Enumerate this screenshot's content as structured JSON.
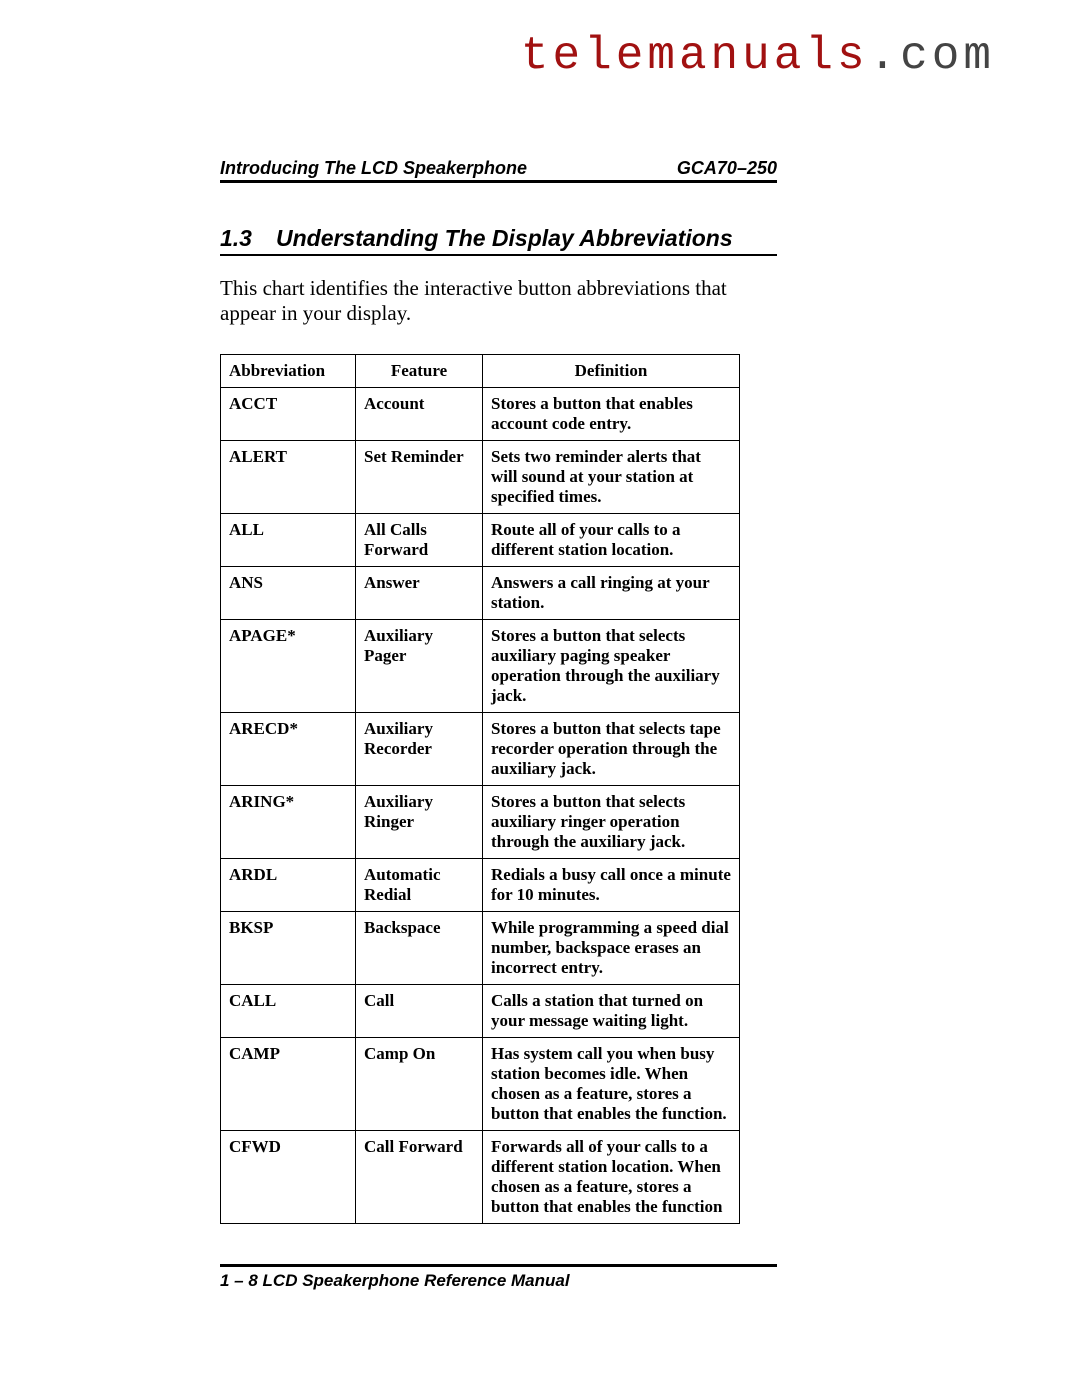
{
  "watermark": {
    "part1": "telemanuals",
    "part2": ".com"
  },
  "header": {
    "left": "Introducing The LCD Speakerphone",
    "right": "GCA70–250"
  },
  "section": {
    "number": "1.3",
    "title": "Understanding The Display Abbreviations"
  },
  "intro": "This chart identifies the interactive button abbreviations that appear in your display.",
  "table": {
    "columns": [
      "Abbreviation",
      "Feature",
      "Definition"
    ],
    "rows": [
      [
        "ACCT",
        "Account",
        "Stores a button that enables account code entry."
      ],
      [
        "ALERT",
        "Set Reminder",
        "Sets two reminder alerts that will sound at your station at specified times."
      ],
      [
        "ALL",
        "All Calls Forward",
        "Route all of your calls to a different station location."
      ],
      [
        "ANS",
        "Answer",
        "Answers a call ringing at your station."
      ],
      [
        "APAGE*",
        "Auxiliary Pager",
        "Stores a button that selects auxiliary paging speaker operation through the auxiliary jack."
      ],
      [
        "ARECD*",
        "Auxiliary Recorder",
        "Stores a button that selects tape recorder operation through the auxiliary jack."
      ],
      [
        "ARING*",
        "Auxiliary Ringer",
        "Stores a button that selects auxiliary ringer operation through the auxiliary jack."
      ],
      [
        "ARDL",
        "Automatic Redial",
        "Redials a busy call once a minute for 10 minutes."
      ],
      [
        "BKSP",
        "Backspace",
        "While programming a speed dial number, backspace erases an incorrect entry."
      ],
      [
        "CALL",
        "Call",
        "Calls a station that turned on your message waiting light."
      ],
      [
        "CAMP",
        "Camp On",
        "Has system call you when busy station becomes idle. When chosen as a feature, stores a button that enables the function."
      ],
      [
        "CFWD",
        "Call Forward",
        "Forwards all of your calls to a different station location. When chosen as a feature, stores a button that enables the function"
      ]
    ]
  },
  "footer": "1 – 8  LCD Speakerphone Reference Manual"
}
